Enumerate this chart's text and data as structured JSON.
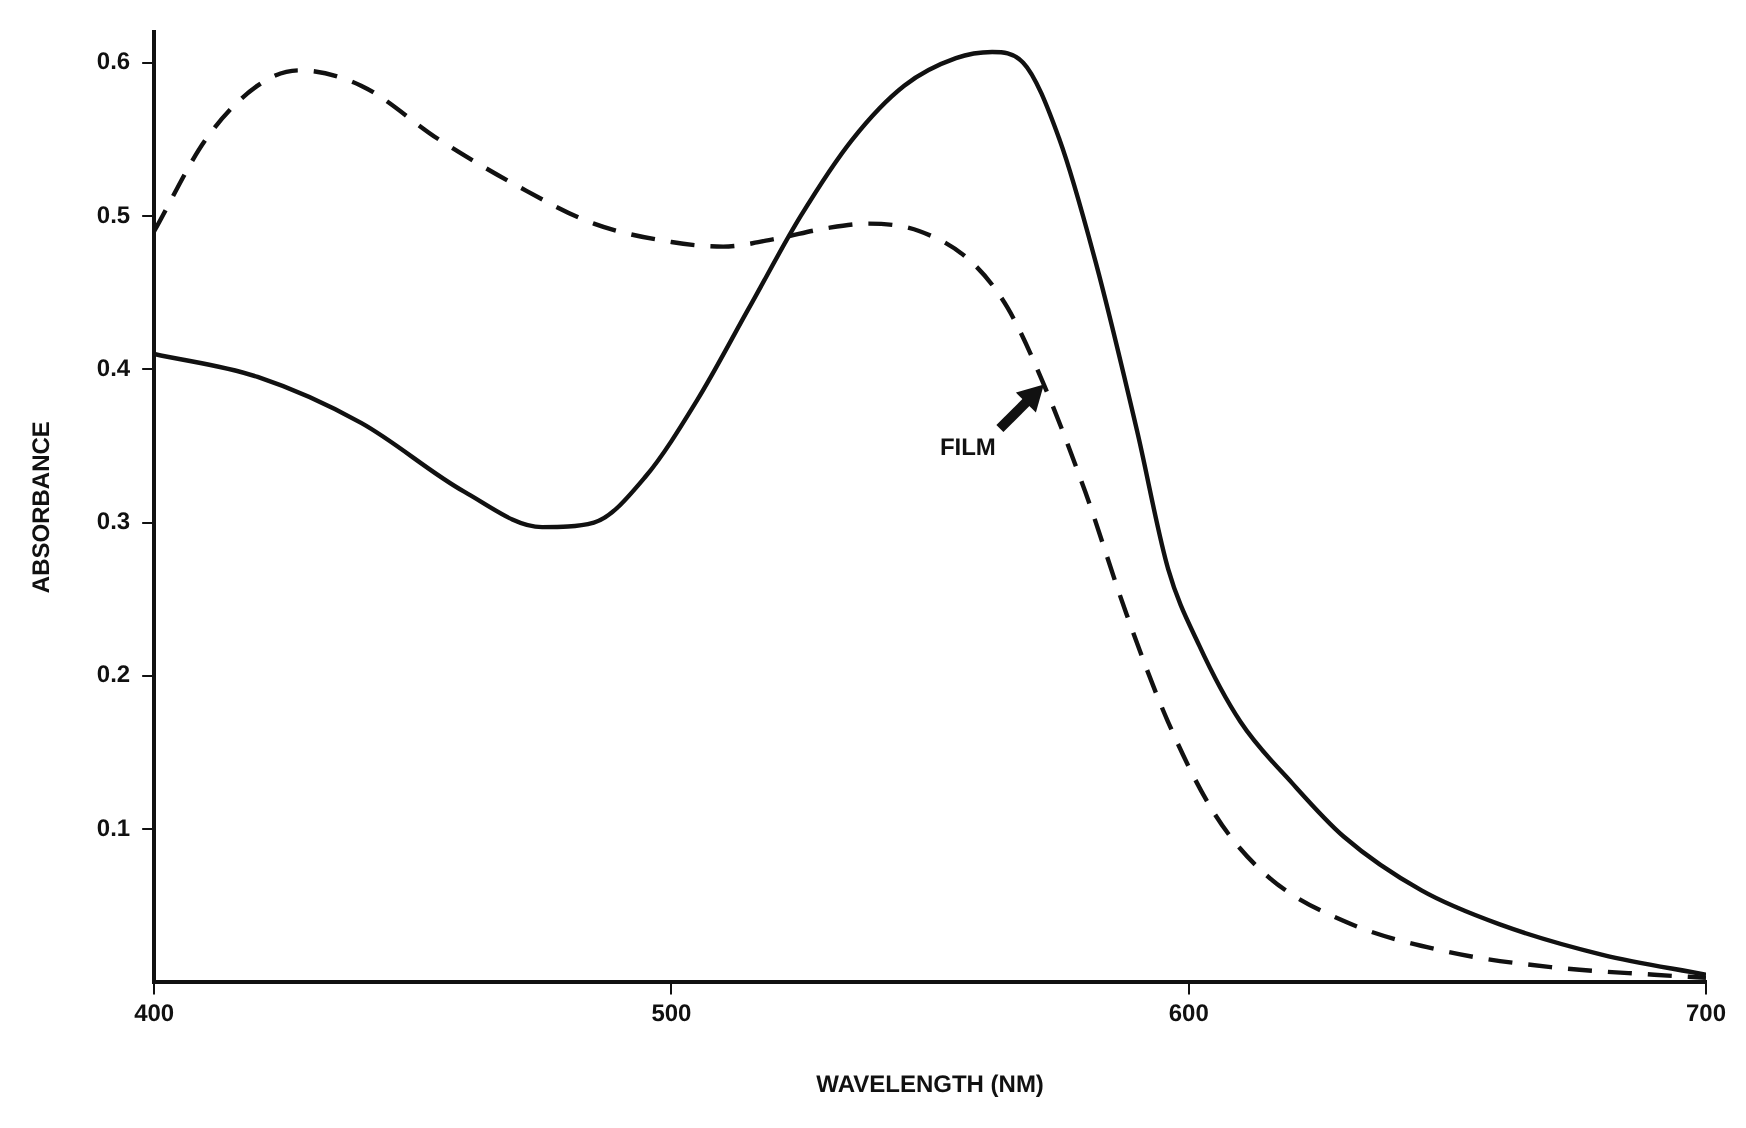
{
  "chart_data": {
    "type": "line",
    "xlabel": "WAVELENGTH (NM)",
    "ylabel": "ABSORBANCE",
    "xlim": [
      400,
      700
    ],
    "xticks": [
      400,
      500,
      600,
      700
    ],
    "ylim": [
      0,
      0.62
    ],
    "yticks": [
      0.1,
      0.2,
      0.3,
      0.4,
      0.5,
      0.6
    ],
    "grid": false,
    "legend": false,
    "marker": "none",
    "series": [
      {
        "color": "#111111",
        "line_style": "solid",
        "x": [
          400,
          420,
          440,
          460,
          475,
          485,
          495,
          505,
          515,
          525,
          535,
          545,
          555,
          562,
          568,
          575,
          582,
          590,
          596,
          602,
          610,
          620,
          630,
          645,
          660,
          680,
          700
        ],
        "values": [
          0.41,
          0.395,
          0.365,
          0.32,
          0.297,
          0.3,
          0.33,
          0.38,
          0.44,
          0.5,
          0.55,
          0.585,
          0.603,
          0.607,
          0.6,
          0.55,
          0.47,
          0.36,
          0.27,
          0.22,
          0.17,
          0.13,
          0.095,
          0.06,
          0.038,
          0.018,
          0.005
        ]
      },
      {
        "color": "#111111",
        "line_style": "dashed",
        "x": [
          400,
          410,
          420,
          428,
          440,
          455,
          470,
          485,
          500,
          510,
          520,
          530,
          538,
          548,
          558,
          565,
          572,
          580,
          588,
          596,
          605,
          615,
          630,
          650,
          670,
          690,
          700
        ],
        "values": [
          0.49,
          0.55,
          0.585,
          0.595,
          0.585,
          0.55,
          0.52,
          0.495,
          0.483,
          0.48,
          0.485,
          0.492,
          0.495,
          0.49,
          0.47,
          0.44,
          0.39,
          0.32,
          0.24,
          0.17,
          0.11,
          0.07,
          0.04,
          0.02,
          0.01,
          0.005,
          0.003
        ]
      }
    ],
    "annotations": [
      {
        "text": "FILM",
        "x": 572,
        "y": 0.39
      }
    ]
  }
}
